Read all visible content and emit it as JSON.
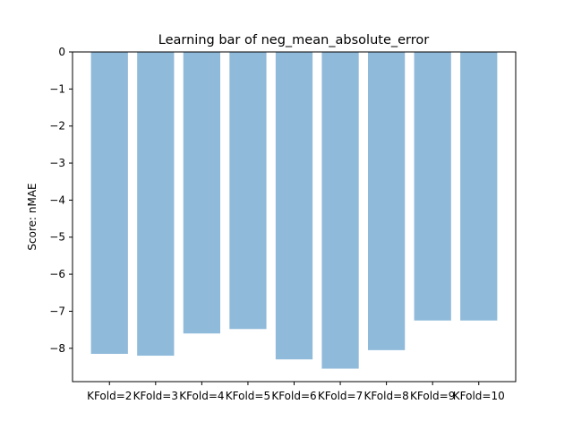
{
  "chart_data": {
    "type": "bar",
    "title": "Learning bar of neg_mean_absolute_error",
    "xlabel": "",
    "ylabel": "Score: nMAE",
    "categories": [
      "KFold=2",
      "KFold=3",
      "KFold=4",
      "KFold=5",
      "KFold=6",
      "KFold=7",
      "KFold=8",
      "KFold=9",
      "KFold=10"
    ],
    "values": [
      -8.15,
      -8.2,
      -7.6,
      -7.48,
      -8.3,
      -8.55,
      -8.05,
      -7.25,
      -7.25
    ],
    "ylim": [
      -8.9,
      0
    ],
    "yticks": [
      0,
      -1,
      -2,
      -3,
      -4,
      -5,
      -6,
      -7,
      -8
    ],
    "ytick_labels": [
      "0",
      "−1",
      "−2",
      "−3",
      "−4",
      "−5",
      "−6",
      "−7",
      "−8"
    ],
    "bar_color": "#8fbada",
    "grid": false,
    "legend": false
  }
}
